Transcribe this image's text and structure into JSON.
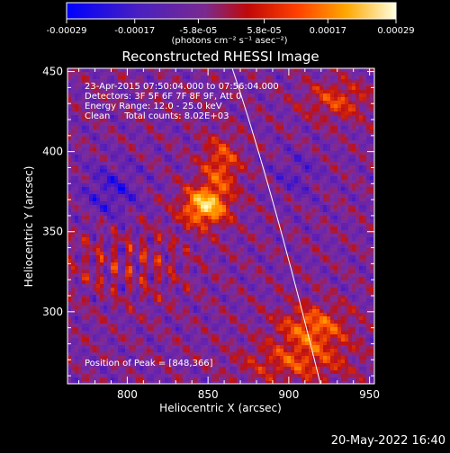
{
  "chart_data": {
    "type": "heatmap",
    "title": "Reconstructed RHESSI Image",
    "xlabel": "Heliocentric X (arcsec)",
    "ylabel": "Heliocentric Y (arcsec)",
    "xlim": [
      763,
      953
    ],
    "ylim": [
      255,
      452
    ],
    "x_ticks": [
      800,
      850,
      900,
      950
    ],
    "y_ticks": [
      300,
      350,
      400,
      450
    ],
    "colorbar": {
      "min": -0.00029,
      "max": 0.00029,
      "ticks": [
        "-0.00029",
        "-0.00017",
        "-5.8e-05",
        "5.8e-05",
        "0.00017",
        "0.00029"
      ],
      "tick_values": [
        -0.00029,
        -0.00017,
        -5.8e-05,
        5.8e-05,
        0.00017,
        0.00029
      ],
      "label": "(photons cm⁻² s⁻¹ asec⁻²)"
    },
    "annotations": [
      "23-Apr-2015 07:50:04.000 to 07:56:04.000",
      "Detectors: 3F 5F 6F 7F 8F 9F, Att 0",
      "Energy Range: 12.0 - 25.0 keV",
      "Clean     Total counts: 8.02E+03"
    ],
    "peak_label": "Position of Peak = [848,366]",
    "peak": [
      848,
      366
    ],
    "grid": false,
    "colormap": [
      "#0000ff",
      "#5a1eb4",
      "#7a2ca0",
      "#c01010",
      "#ff5a00",
      "#ffb400",
      "#ffffd0"
    ]
  },
  "footer": {
    "timestamp": "20-May-2022 16:40"
  }
}
